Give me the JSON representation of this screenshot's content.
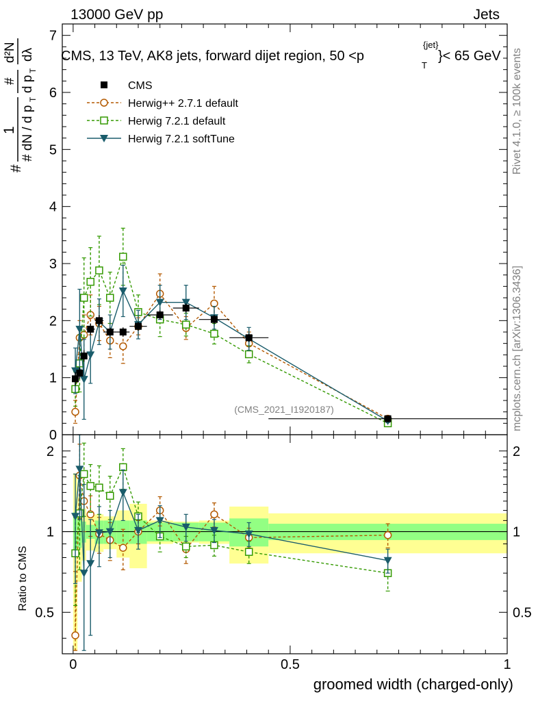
{
  "header": {
    "left": "13000 GeV pp",
    "right": "Jets",
    "rivet": "Rivet 4.1.0, ≥ 100k events",
    "mcplots": "mcplots.cern.ch [arXiv:1306.3436]",
    "watermark": "(CMS_2021_I1920187)"
  },
  "chart_data": {
    "type": "line",
    "title": "CMS, 13 TeV, AK8 jets, forward dijet region, 50 <p_T^{jet}< 65 GeV",
    "title_parts": {
      "prefix": "CMS, 13 TeV, AK8 jets, forward dijet region, 50 <p",
      "sup": "{jet}",
      "sub": "T",
      "suffix": "}< 65 GeV"
    },
    "xlabel": "groomed width (charged-only)",
    "ylabel": {
      "top_num": "1",
      "top_den": "# dN / d p",
      "top_den_sub": "T",
      "frac2_num": "#",
      "frac2_den": "d p",
      "frac2_den_sub": "T",
      "frac3_num": "d²N",
      "frac3_den": "dλ",
      "lead": "#"
    },
    "ratio_ylabel": "Ratio to CMS",
    "xlim": [
      -0.025,
      1.0
    ],
    "ylim": [
      0,
      7.2
    ],
    "ratio_ylim": [
      0.35,
      2.3
    ],
    "x_ticks": [
      0,
      0.5,
      1
    ],
    "x_tick_labels": [
      "0",
      "0.5",
      "1"
    ],
    "y_ticks": [
      0,
      1,
      2,
      3,
      4,
      5,
      6,
      7
    ],
    "y_tick_labels": [
      "0",
      "1",
      "2",
      "3",
      "4",
      "5",
      "6",
      "7"
    ],
    "ratio_ticks": [
      0.5,
      1,
      2
    ],
    "ratio_tick_labels": [
      "0.5",
      "1",
      "2"
    ],
    "bin_edges": [
      0,
      0.01,
      0.02,
      0.03,
      0.05,
      0.07,
      0.1,
      0.13,
      0.17,
      0.23,
      0.29,
      0.36,
      0.45,
      1.0
    ],
    "x": [
      0.005,
      0.015,
      0.025,
      0.04,
      0.06,
      0.085,
      0.115,
      0.15,
      0.2,
      0.26,
      0.325,
      0.405,
      0.725
    ],
    "legend": [
      "CMS",
      "Herwig++ 2.7.1 default",
      "Herwig 7.2.1 default",
      "Herwig 7.2.1 softTune"
    ],
    "series": [
      {
        "name": "CMS",
        "style": "data",
        "color": "#000000",
        "values": [
          0.98,
          1.08,
          1.38,
          1.85,
          2.0,
          1.8,
          1.8,
          1.9,
          2.1,
          2.22,
          2.02,
          1.7,
          0.28
        ],
        "errors": [
          0.12,
          0.1,
          0.1,
          0.1,
          0.1,
          0.08,
          0.08,
          0.08,
          0.08,
          0.08,
          0.08,
          0.07,
          0.02
        ],
        "ratio_stat": [
          0.18,
          0.13,
          0.09,
          0.06,
          0.1,
          0.1,
          0.1,
          0.1,
          0.08,
          0.08,
          0.08,
          0.12,
          0.07
        ],
        "ratio_tot": [
          0.65,
          0.35,
          0.22,
          0.15,
          0.16,
          0.14,
          0.2,
          0.27,
          0.1,
          0.09,
          0.1,
          0.24,
          0.17
        ]
      },
      {
        "name": "Herwig++ 2.7.1 default",
        "style": "circle",
        "color": "#b35900",
        "values": [
          0.4,
          1.7,
          1.75,
          2.1,
          1.95,
          1.65,
          1.55,
          1.9,
          2.47,
          1.87,
          2.3,
          1.6,
          0.28
        ],
        "errors": [
          0.2,
          0.3,
          0.35,
          0.35,
          0.3,
          0.3,
          0.3,
          0.15,
          0.35,
          0.2,
          0.3,
          0.2,
          0.03
        ],
        "ratios": [
          0.41,
          1.62,
          1.3,
          1.16,
          0.98,
          0.93,
          0.87,
          1.0,
          1.2,
          0.86,
          1.16,
          0.95,
          0.97
        ],
        "ratio_errors": [
          0.3,
          0.5,
          0.3,
          0.2,
          0.15,
          0.15,
          0.15,
          0.1,
          0.15,
          0.1,
          0.12,
          0.08,
          0.1
        ]
      },
      {
        "name": "Herwig 7.2.1 default",
        "style": "square",
        "color": "#339900",
        "values": [
          0.8,
          1.25,
          2.4,
          2.68,
          2.88,
          2.4,
          3.12,
          2.15,
          2.02,
          1.93,
          1.77,
          1.41,
          0.2
        ],
        "errors": [
          0.3,
          0.5,
          0.7,
          0.6,
          0.6,
          0.45,
          0.5,
          0.3,
          0.3,
          0.2,
          0.18,
          0.15,
          0.03
        ],
        "ratios": [
          0.83,
          1.17,
          1.64,
          1.48,
          1.46,
          1.36,
          1.74,
          1.14,
          0.96,
          0.88,
          0.89,
          0.84,
          0.7
        ],
        "ratio_errors": [
          0.3,
          0.45,
          0.5,
          0.3,
          0.3,
          0.25,
          0.3,
          0.15,
          0.12,
          0.08,
          0.08,
          0.08,
          0.1
        ]
      },
      {
        "name": "Herwig 7.2.1 softTune",
        "style": "triangle",
        "color": "#1a5c6b",
        "values": [
          1.12,
          1.85,
          0.97,
          1.4,
          1.98,
          1.8,
          2.52,
          1.93,
          2.32,
          2.32,
          2.05,
          1.68,
          0.24
        ],
        "errors": [
          0.4,
          0.7,
          0.7,
          0.5,
          0.4,
          0.3,
          0.45,
          0.25,
          0.3,
          0.3,
          0.2,
          0.2,
          0.03
        ],
        "ratios": [
          1.14,
          1.71,
          0.7,
          0.76,
          0.99,
          1.0,
          1.4,
          1.01,
          1.1,
          1.04,
          1.01,
          0.98,
          0.78
        ],
        "ratio_errors": [
          0.5,
          0.6,
          0.8,
          0.35,
          0.25,
          0.2,
          0.3,
          0.15,
          0.15,
          0.12,
          0.1,
          0.1,
          0.08
        ]
      }
    ]
  }
}
